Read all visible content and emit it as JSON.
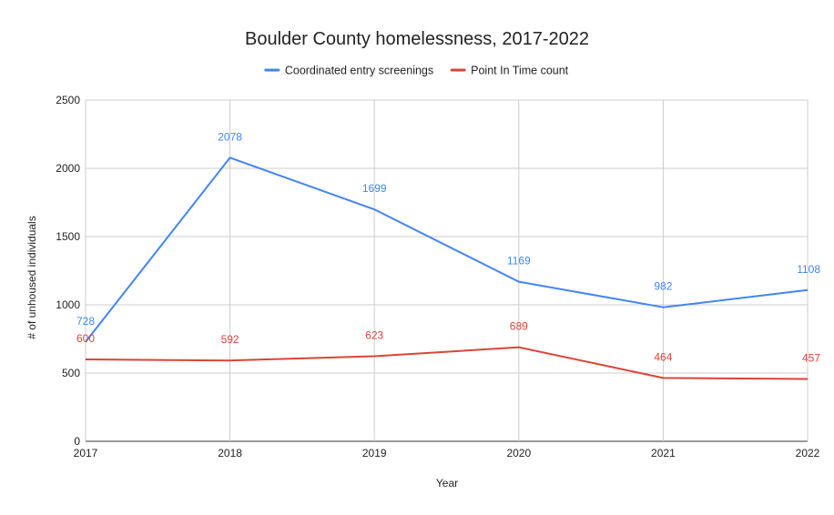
{
  "chart_data": {
    "type": "line",
    "title": "Boulder County homelessness, 2017-2022",
    "xlabel": "Year",
    "ylabel": "# of unhoused individuals",
    "x": [
      "2017",
      "2018",
      "2019",
      "2020",
      "2021",
      "2022"
    ],
    "ylim": [
      0,
      2500
    ],
    "yticks": [
      0,
      500,
      1000,
      1500,
      2000,
      2500
    ],
    "grid": true,
    "legend_position": "top",
    "series": [
      {
        "name": "Coordinated entry screenings",
        "color": "#4285f4",
        "values": [
          728,
          2078,
          1699,
          1169,
          982,
          1108
        ],
        "labels": [
          "728",
          "2078",
          "1699",
          "1169",
          "982",
          "1108"
        ]
      },
      {
        "name": "Point In Time count",
        "color": "#db4437",
        "values": [
          600,
          592,
          623,
          689,
          464,
          457
        ],
        "labels": [
          "600",
          "592",
          "623",
          "689",
          "464",
          "457"
        ]
      }
    ]
  }
}
